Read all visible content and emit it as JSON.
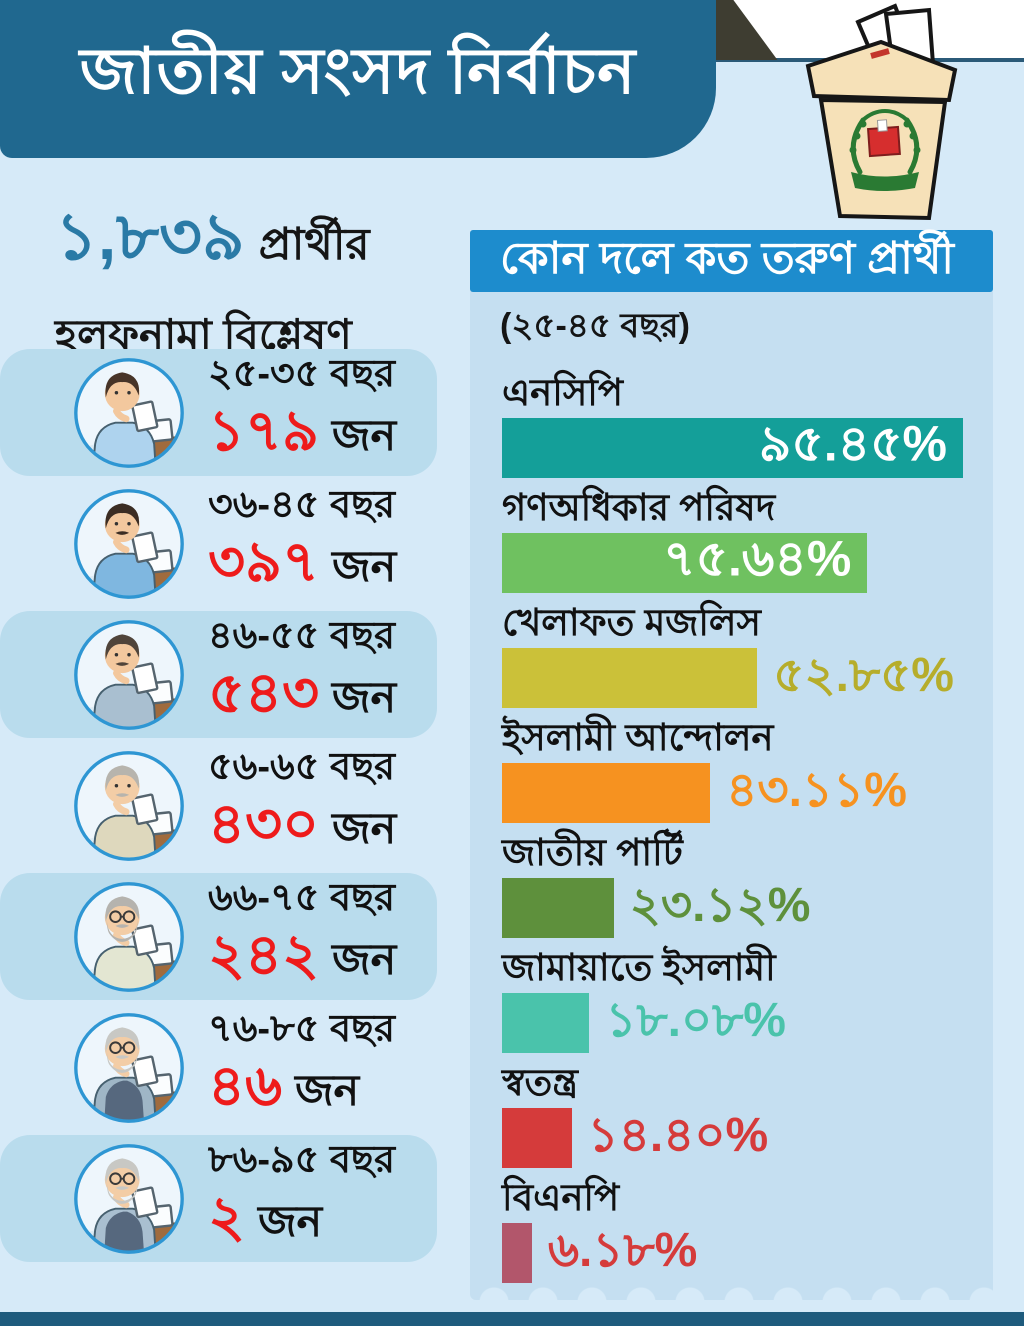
{
  "title": "জাতীয় সংসদ নির্বাচন",
  "colors": {
    "page_bg": "#d6eaf8",
    "panel_bg": "#c5dff1",
    "row_highlight_bg": "#b9dced",
    "banner_bg": "#20688f",
    "header_bar_bg": "#1d8ccd",
    "accent_blue": "#2a7aa6",
    "count_red": "#ee1b1b",
    "footer_strip": "#1e5b7d",
    "fold_corner": "#3e3d31"
  },
  "left_panel": {
    "headline_number": "১,৮৩৯",
    "headline_word": "প্রার্থীর",
    "headline_line2": "হলফনামা বিশ্লেষণ",
    "count_unit": "জন",
    "rows": [
      {
        "age_range": "২৫-৩৫ বছর",
        "count": "১৭৯",
        "unit": "জন",
        "highlighted": true,
        "avatar": {
          "hair": "#473428",
          "skin": "#f3c89e",
          "shirt": "#aed3ee",
          "vest": "",
          "mustache": false,
          "beard": false,
          "glasses": false
        }
      },
      {
        "age_range": "৩৬-৪৫ বছর",
        "count": "৩৯৭",
        "unit": "জন",
        "highlighted": false,
        "avatar": {
          "hair": "#3c2d23",
          "skin": "#f3c89e",
          "shirt": "#7fb7e0",
          "vest": "",
          "mustache": true,
          "beard": false,
          "glasses": false
        }
      },
      {
        "age_range": "৪৬-৫৫ বছর",
        "count": "৫৪৩",
        "unit": "জন",
        "highlighted": true,
        "avatar": {
          "hair": "#50443a",
          "skin": "#f3c89e",
          "shirt": "#a9bfd0",
          "vest": "",
          "mustache": true,
          "beard": false,
          "glasses": false
        }
      },
      {
        "age_range": "৫৬-৬৫ বছর",
        "count": "৪৩০",
        "unit": "জন",
        "highlighted": false,
        "avatar": {
          "hair": "#b7b4ad",
          "skin": "#f3cda6",
          "shirt": "#ded8bd",
          "vest": "",
          "mustache": true,
          "beard": false,
          "glasses": false
        }
      },
      {
        "age_range": "৬৬-৭৫ বছর",
        "count": "২৪২",
        "unit": "জন",
        "highlighted": true,
        "avatar": {
          "hair": "#b5b3ae",
          "skin": "#f3cda6",
          "shirt": "#e3e6d2",
          "vest": "",
          "mustache": true,
          "beard": true,
          "glasses": true
        }
      },
      {
        "age_range": "৭৬-৮৫ বছর",
        "count": "৪৬",
        "unit": "জন",
        "highlighted": false,
        "avatar": {
          "hair": "#c8c8c4",
          "skin": "#f3cda6",
          "shirt": "#9fb6c6",
          "vest": "#56687e",
          "mustache": true,
          "beard": true,
          "glasses": true
        }
      },
      {
        "age_range": "৮৬-৯৫ বছর",
        "count": "২",
        "unit": "জন",
        "highlighted": true,
        "avatar": {
          "hair": "#c8c8c4",
          "skin": "#f3cda6",
          "shirt": "#a9bfd0",
          "vest": "#56687e",
          "mustache": true,
          "beard": true,
          "glasses": true
        }
      }
    ]
  },
  "chart_data": {
    "type": "bar",
    "title": "কোন দলে কত তরুণ প্রার্থী",
    "subtitle": "(২৫-৪৫ বছর)",
    "orientation": "horizontal",
    "xlim": [
      0,
      100
    ],
    "grid": false,
    "legend": "none",
    "categories": [
      "এনসিপি",
      "গণঅধিকার পরিষদ",
      "খেলাফত মজলিস",
      "ইসলামী আন্দোলন",
      "জাতীয় পার্টি",
      "জামায়াতে ইসলামী",
      "স্বতন্ত্র",
      "বিএনপি"
    ],
    "values": [
      95.45,
      75.64,
      52.85,
      43.11,
      23.12,
      18.08,
      14.4,
      6.18
    ],
    "value_labels": [
      "৯৫.৪৫%",
      "৭৫.৬৪%",
      "৫২.৮৫%",
      "৪৩.১১%",
      "২৩.১২%",
      "১৮.০৮%",
      "১৪.৪০%",
      "৬.১৮%"
    ],
    "bar_colors": [
      "#149f99",
      "#6fc160",
      "#cbc139",
      "#f69220",
      "#5e903c",
      "#4ac3ab",
      "#d53b3b",
      "#b2566b"
    ],
    "value_label_colors": [
      "#ffffff",
      "#ffffff",
      "#b6ad2b",
      "#f69220",
      "#5e903c",
      "#4ac3ab",
      "#d53b3b",
      "#d53b3b"
    ],
    "value_label_inside": [
      true,
      true,
      false,
      false,
      false,
      false,
      false,
      false
    ]
  }
}
